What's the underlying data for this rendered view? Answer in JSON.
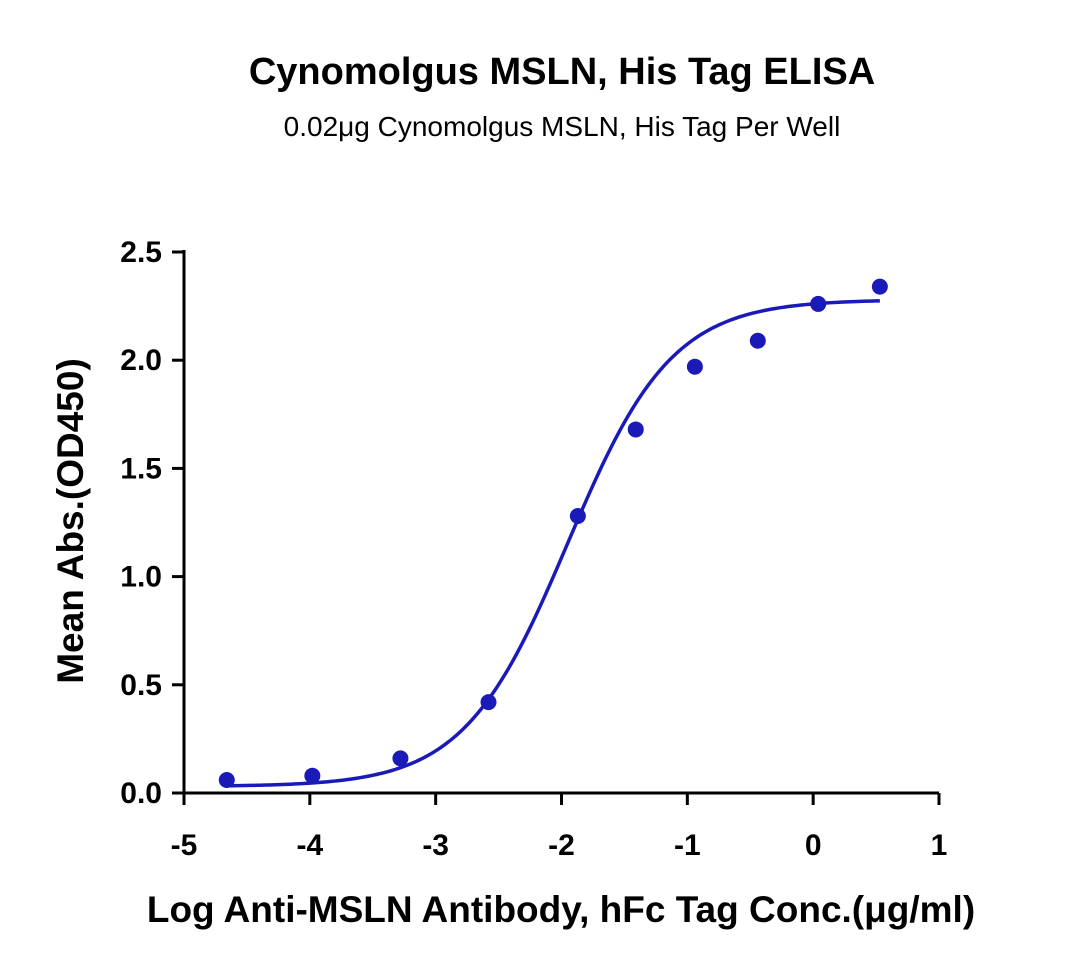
{
  "chart_data": {
    "type": "scatter",
    "title": "Cynomolgus MSLN, His Tag ELISA",
    "subtitle": "0.02μg Cynomolgus MSLN, His Tag Per Well",
    "xlabel": "Log Anti-MSLN Antibody, hFc Tag Conc.(μg/ml)",
    "ylabel": "Mean Abs.(OD450)",
    "xlim": [
      -5,
      1
    ],
    "ylim": [
      0,
      2.5
    ],
    "xticks": [
      "-5",
      "-4",
      "-3",
      "-2",
      "-1",
      "0",
      "1"
    ],
    "yticks": [
      "0.0",
      "0.5",
      "1.0",
      "1.5",
      "2.0",
      "2.5"
    ],
    "grid": false,
    "legend": "none",
    "color": "#1a1ab8",
    "series": [
      {
        "x": [
          -4.66,
          -3.98,
          -3.28,
          -2.58,
          -1.87,
          -1.41,
          -0.94,
          -0.44,
          0.04,
          0.53
        ],
        "y": [
          0.06,
          0.08,
          0.16,
          0.42,
          1.28,
          1.68,
          1.97,
          2.09,
          2.26,
          2.34
        ]
      }
    ],
    "fit": {
      "model": "4PL",
      "bottom": 0.03,
      "top": 2.28,
      "logEC50": -1.95,
      "hill": 1.05
    }
  }
}
